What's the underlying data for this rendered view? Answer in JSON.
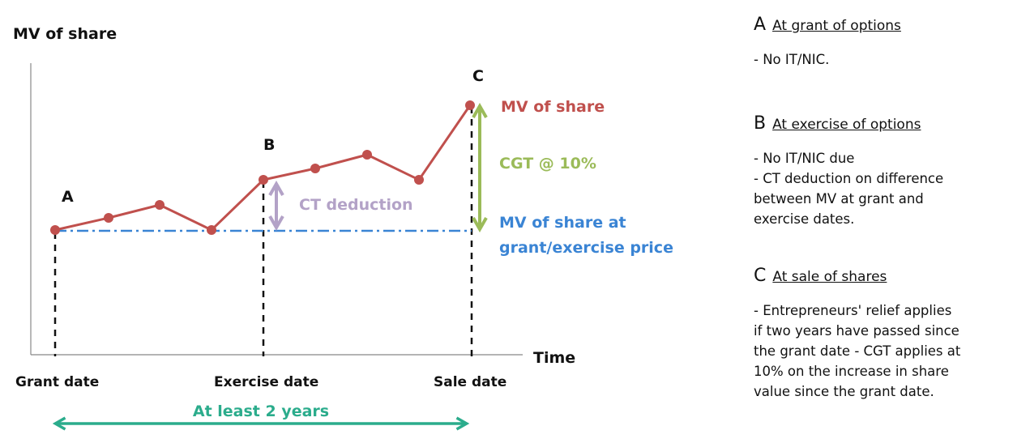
{
  "chart": {
    "y_axis_title": "MV of share",
    "x_axis_title": "Time",
    "x_labels": {
      "grant": "Grant date",
      "exercise": "Exercise date",
      "sale": "Sale date"
    },
    "point_labels": {
      "a": "A",
      "b": "B",
      "c": "C"
    },
    "annotations": {
      "mv_share": "MV of share",
      "cgt": "CGT @ 10%",
      "ct_deduction": "CT deduction",
      "mv_grant_line1": "MV of share at",
      "mv_grant_line2": "grant/exercise price",
      "duration": "At least 2 years"
    },
    "colors": {
      "share_line": "#c0504d",
      "grant_price_line": "#3a84d4",
      "cgt_arrow": "#9bbb59",
      "ct_arrow": "#b3a2c7",
      "duration_arrow": "#2bac8c",
      "axis": "#888888"
    }
  },
  "notes": [
    {
      "letter": "A",
      "title": "At grant of options",
      "lines": [
        "- No IT/NIC."
      ]
    },
    {
      "letter": "B",
      "title": "At exercise of options",
      "lines": [
        "- No IT/NIC due",
        "- CT deduction on difference",
        "between MV at grant and",
        "exercise dates."
      ]
    },
    {
      "letter": "C",
      "title": "At sale of shares",
      "lines": [
        "- Entrepreneurs' relief applies",
        "if two years have passed since",
        "the grant date - CGT applies at",
        "10% on the increase in share",
        "value since the grant date."
      ]
    }
  ]
}
